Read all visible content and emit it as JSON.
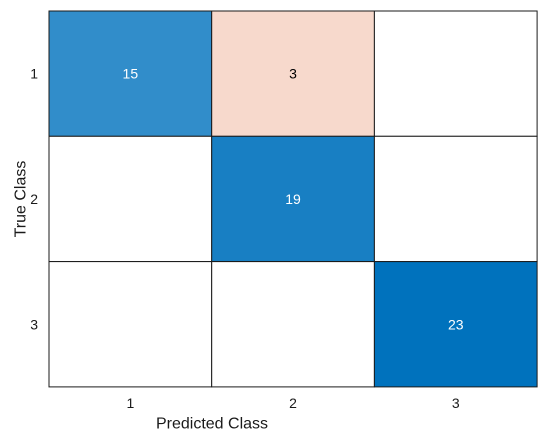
{
  "chart_data": {
    "type": "heatmap",
    "title": "",
    "xlabel": "Predicted Class",
    "ylabel": "True Class",
    "x_categories": [
      "1",
      "2",
      "3"
    ],
    "y_categories": [
      "1",
      "2",
      "3"
    ],
    "values": [
      [
        15,
        3,
        0
      ],
      [
        0,
        19,
        0
      ],
      [
        0,
        0,
        23
      ]
    ],
    "show_zero_values": false,
    "colors": {
      "correct_scale": [
        "#ffffff",
        "#0072bd"
      ],
      "incorrect_scale": [
        "#ffffff",
        "#d95319"
      ],
      "grid_line": "#1a1a1a",
      "light_text": "#000000",
      "dark_text": "#ffffff"
    }
  }
}
